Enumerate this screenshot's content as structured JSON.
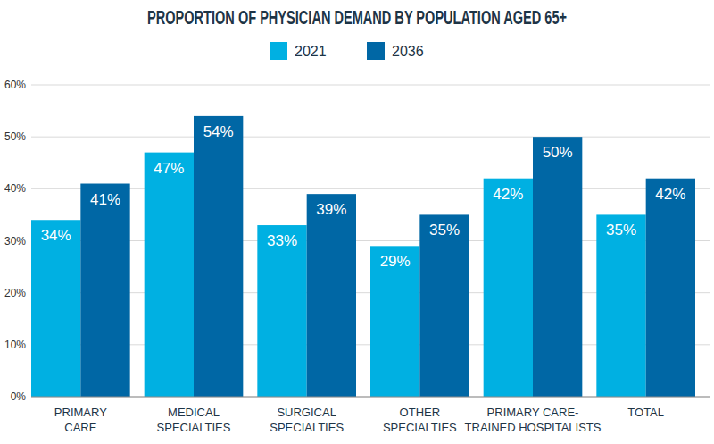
{
  "chart_data": {
    "type": "bar",
    "title": "PROPORTION OF PHYSICIAN DEMAND BY POPULATION AGED 65+",
    "categories": [
      "PRIMARY\nCARE",
      "MEDICAL\nSPECIALTIES",
      "SURGICAL\nSPECIALTIES",
      "OTHER\nSPECIALTIES",
      "PRIMARY CARE-\nTRAINED HOSPITALISTS",
      "TOTAL"
    ],
    "series": [
      {
        "name": "2021",
        "color": "#00b0e2",
        "values": [
          34,
          47,
          33,
          29,
          42,
          35
        ],
        "value_labels": [
          "34%",
          "47%",
          "33%",
          "29%",
          "42%",
          "35%"
        ]
      },
      {
        "name": "2036",
        "color": "#0067a5",
        "values": [
          41,
          54,
          39,
          35,
          50,
          42
        ],
        "value_labels": [
          "41%",
          "54%",
          "39%",
          "35%",
          "50%",
          "42%"
        ]
      }
    ],
    "ylim": [
      0,
      60
    ],
    "yticks": [
      {
        "value": 0,
        "label": "0%"
      },
      {
        "value": 10,
        "label": "10%"
      },
      {
        "value": 20,
        "label": "20%"
      },
      {
        "value": 30,
        "label": "30%"
      },
      {
        "value": 40,
        "label": "40%"
      },
      {
        "value": 50,
        "label": "50%"
      },
      {
        "value": 60,
        "label": "60%"
      }
    ],
    "grid": true,
    "data_labels": true,
    "legend": "top"
  }
}
